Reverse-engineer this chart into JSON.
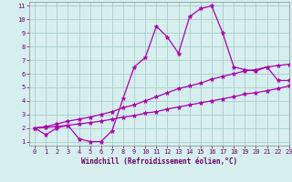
{
  "line1_x": [
    0,
    1,
    2,
    3,
    4,
    5,
    6,
    7,
    8,
    9,
    10,
    11,
    12,
    13,
    14,
    15,
    16,
    17,
    18,
    19,
    20,
    21,
    22,
    23
  ],
  "line1_y": [
    2.0,
    1.5,
    2.0,
    2.2,
    1.2,
    1.0,
    1.0,
    1.8,
    4.2,
    6.5,
    7.2,
    9.5,
    8.7,
    7.5,
    10.2,
    10.8,
    11.0,
    9.0,
    6.5,
    6.3,
    6.2,
    6.5,
    5.5,
    5.5
  ],
  "line2_x": [
    0,
    1,
    2,
    3,
    4,
    5,
    6,
    7,
    8,
    9,
    10,
    11,
    12,
    13,
    14,
    15,
    16,
    17,
    18,
    19,
    20,
    21,
    22,
    23
  ],
  "line2_y": [
    2.0,
    2.1,
    2.3,
    2.5,
    2.65,
    2.8,
    3.0,
    3.2,
    3.5,
    3.7,
    4.0,
    4.3,
    4.6,
    4.9,
    5.1,
    5.3,
    5.6,
    5.8,
    6.0,
    6.2,
    6.3,
    6.5,
    6.6,
    6.7
  ],
  "line3_x": [
    0,
    1,
    2,
    3,
    4,
    5,
    6,
    7,
    8,
    9,
    10,
    11,
    12,
    13,
    14,
    15,
    16,
    17,
    18,
    19,
    20,
    21,
    22,
    23
  ],
  "line3_y": [
    2.0,
    2.05,
    2.1,
    2.2,
    2.3,
    2.4,
    2.5,
    2.65,
    2.8,
    2.9,
    3.1,
    3.2,
    3.4,
    3.55,
    3.7,
    3.85,
    4.0,
    4.15,
    4.3,
    4.5,
    4.6,
    4.75,
    4.9,
    5.1
  ],
  "color": "#aa00aa",
  "bg_color": "#d6eeee",
  "grid_color": "#aacccc",
  "xlabel": "Windchill (Refroidissement éolien,°C)",
  "xlim": [
    -0.5,
    23
  ],
  "ylim": [
    0.7,
    11.3
  ],
  "yticks": [
    1,
    2,
    3,
    4,
    5,
    6,
    7,
    8,
    9,
    10,
    11
  ],
  "xticks": [
    0,
    1,
    2,
    3,
    4,
    5,
    6,
    7,
    8,
    9,
    10,
    11,
    12,
    13,
    14,
    15,
    16,
    17,
    18,
    19,
    20,
    21,
    22,
    23
  ],
  "marker": "*",
  "markersize": 3.5,
  "linewidth": 0.9,
  "xlabel_fontsize": 5.5,
  "tick_fontsize": 5.0
}
